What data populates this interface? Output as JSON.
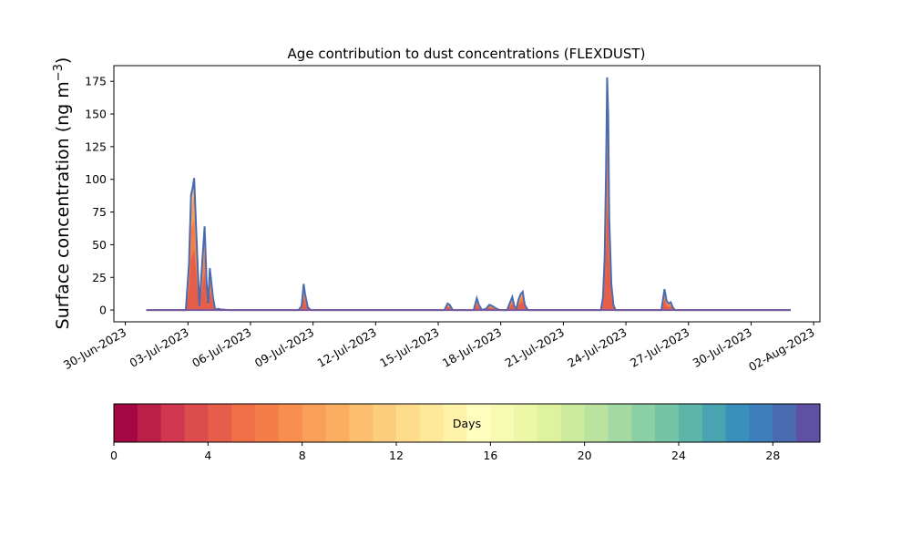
{
  "chart_data": {
    "type": "area",
    "title": "Age contribution to dust concentrations (FLEXDUST)",
    "ylabel": "Surface concentration (ng m",
    "ylabel_unit_sup": "−3",
    "ylabel_close": ")",
    "xlabel": "",
    "ylim": [
      -9,
      187
    ],
    "yticks": [
      0,
      25,
      50,
      75,
      100,
      125,
      150,
      175
    ],
    "xlim_days": [
      -0.55,
      33.3
    ],
    "xtick_labels": [
      "30-Jun-2023",
      "03-Jul-2023",
      "06-Jul-2023",
      "09-Jul-2023",
      "12-Jul-2023",
      "15-Jul-2023",
      "18-Jul-2023",
      "21-Jul-2023",
      "24-Jul-2023",
      "27-Jul-2023",
      "30-Jul-2023",
      "02-Aug-2023"
    ],
    "xtick_days": [
      0,
      3,
      6,
      9,
      12,
      15,
      18,
      21,
      24,
      27,
      30,
      33
    ],
    "grid": false,
    "series_total": {
      "x_days": [
        1.0,
        2.9,
        3.05,
        3.15,
        3.22,
        3.3,
        3.4,
        3.55,
        3.7,
        3.8,
        3.9,
        3.97,
        4.05,
        4.2,
        4.3,
        4.38,
        4.45,
        4.55,
        5.0,
        8.3,
        8.45,
        8.55,
        8.62,
        8.75,
        8.9,
        15.3,
        15.45,
        15.55,
        15.7,
        16.7,
        16.85,
        16.95,
        17.1,
        17.3,
        17.45,
        17.6,
        17.8,
        17.95,
        18.1,
        18.3,
        18.55,
        18.65,
        18.75,
        18.85,
        18.95,
        19.05,
        19.15,
        19.3,
        22.8,
        22.9,
        22.98,
        23.05,
        23.1,
        23.15,
        23.2,
        23.3,
        23.4,
        23.5,
        25.7,
        25.85,
        25.95,
        26.05,
        26.15,
        26.25,
        26.35,
        31.9
      ],
      "values": [
        0,
        0,
        35,
        88,
        93,
        101,
        60,
        3,
        40,
        64,
        20,
        5,
        32,
        10,
        1,
        0.5,
        1,
        0.5,
        0,
        0,
        3,
        20,
        12,
        2,
        0,
        0,
        5,
        4,
        0,
        0,
        9,
        4,
        0,
        1,
        4,
        3,
        1,
        0,
        0,
        0,
        10,
        3,
        1,
        8,
        12,
        14,
        4,
        0,
        0,
        10,
        40,
        110,
        178,
        150,
        70,
        20,
        4,
        0,
        0,
        16,
        7,
        5,
        6,
        2,
        0,
        0
      ]
    },
    "colorbar": {
      "label": "Days",
      "range": [
        0,
        30
      ],
      "ticks": [
        0,
        4,
        8,
        12,
        16,
        20,
        24,
        28
      ],
      "colors": [
        "#a40843",
        "#bb1f48",
        "#d0364d",
        "#db4c4b",
        "#e65e49",
        "#f06f47",
        "#f47e4a",
        "#f88f51",
        "#fa9f59",
        "#fcae60",
        "#fdbe6f",
        "#fdcd7e",
        "#fedc8c",
        "#fee89a",
        "#fff3aa",
        "#fffebe",
        "#f6fab2",
        "#ecf7a5",
        "#dff29d",
        "#cdeb9d",
        "#b9e39f",
        "#a3d9a3",
        "#8bcfa5",
        "#74c4a6",
        "#5db5a9",
        "#4aa3b0",
        "#3890bb",
        "#3c7fba",
        "#4a6ab1",
        "#5e50a3"
      ]
    }
  }
}
